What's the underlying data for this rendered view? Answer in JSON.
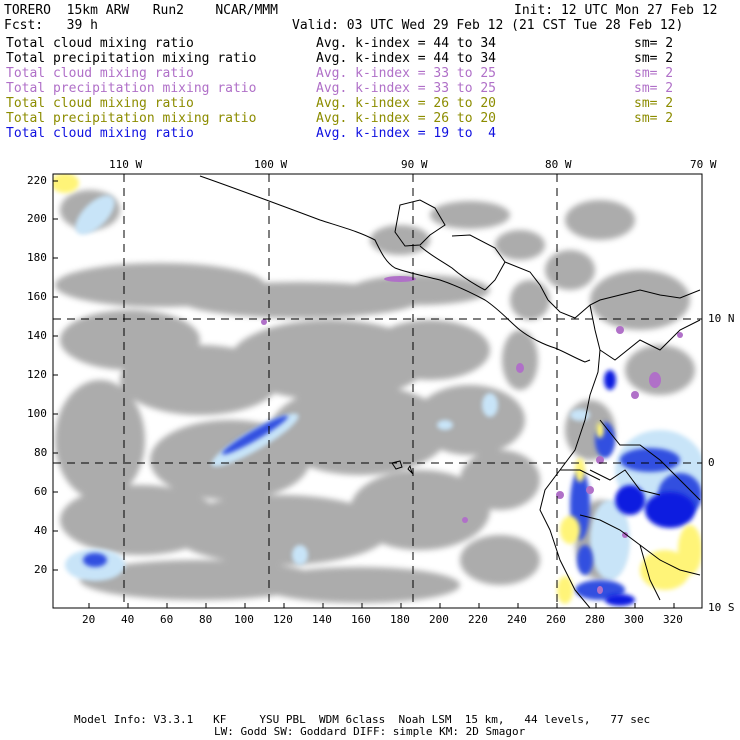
{
  "header": {
    "model": "TORERO  15km ARW   Run2    NCAR/MMM",
    "init": "Init: 12 UTC Mon 27 Feb 12",
    "fcst": "Fcst:   39 h",
    "valid": "Valid: 03 UTC Wed 29 Feb 12 (21 CST Tue 28 Feb 12)"
  },
  "legend": [
    {
      "field": "Total cloud mixing ratio",
      "avg": "Avg. k-index = 44 to 34",
      "sm": "sm= 2",
      "color": "#000000"
    },
    {
      "field": "Total precipitation mixing ratio",
      "avg": "Avg. k-index = 44 to 34",
      "sm": "sm= 2",
      "color": "#000000"
    },
    {
      "field": "Total cloud mixing ratio",
      "avg": "Avg. k-index = 33 to 25",
      "sm": "sm= 2",
      "color": "#b070c8"
    },
    {
      "field": "Total precipitation mixing ratio",
      "avg": "Avg. k-index = 33 to 25",
      "sm": "sm= 2",
      "color": "#b070c8"
    },
    {
      "field": "Total cloud mixing ratio",
      "avg": "Avg. k-index = 26 to 20",
      "sm": "sm= 2",
      "color": "#8c8c00"
    },
    {
      "field": "Total precipitation mixing ratio",
      "avg": "Avg. k-index = 26 to 20",
      "sm": "sm= 2",
      "color": "#8c8c00"
    },
    {
      "field": "Total cloud mixing ratio",
      "avg": "Avg. k-index = 19 to  4",
      "sm": "",
      "color": "#1010e0"
    }
  ],
  "lon_labels": [
    "110 W",
    "100 W",
    "90 W",
    "80 W",
    "70 W"
  ],
  "lat_labels": [
    "10 N",
    "0",
    "10 S"
  ],
  "y_ticks": [
    "220",
    "200",
    "180",
    "160",
    "140",
    "120",
    "100",
    "80",
    "60",
    "40",
    "20"
  ],
  "x_ticks": [
    "20",
    "40",
    "60",
    "80",
    "100",
    "120",
    "140",
    "160",
    "180",
    "200",
    "220",
    "240",
    "260",
    "280",
    "300",
    "320"
  ],
  "footer": {
    "line1": "Model Info: V3.3.1   KF     YSU PBL  WDM 6class  Noah LSM  15 km,   44 levels,   77 sec",
    "line2": "LW: Godd SW: Goddard DIFF: simple KM: 2D Smagor"
  },
  "colors": {
    "cloud_gray": "#a8a8a8",
    "light_blue": "#c8e4f8",
    "blue": "#3050e0",
    "dark_blue": "#0a1ee0",
    "yellow": "#fff478",
    "purple": "#b070c8"
  }
}
